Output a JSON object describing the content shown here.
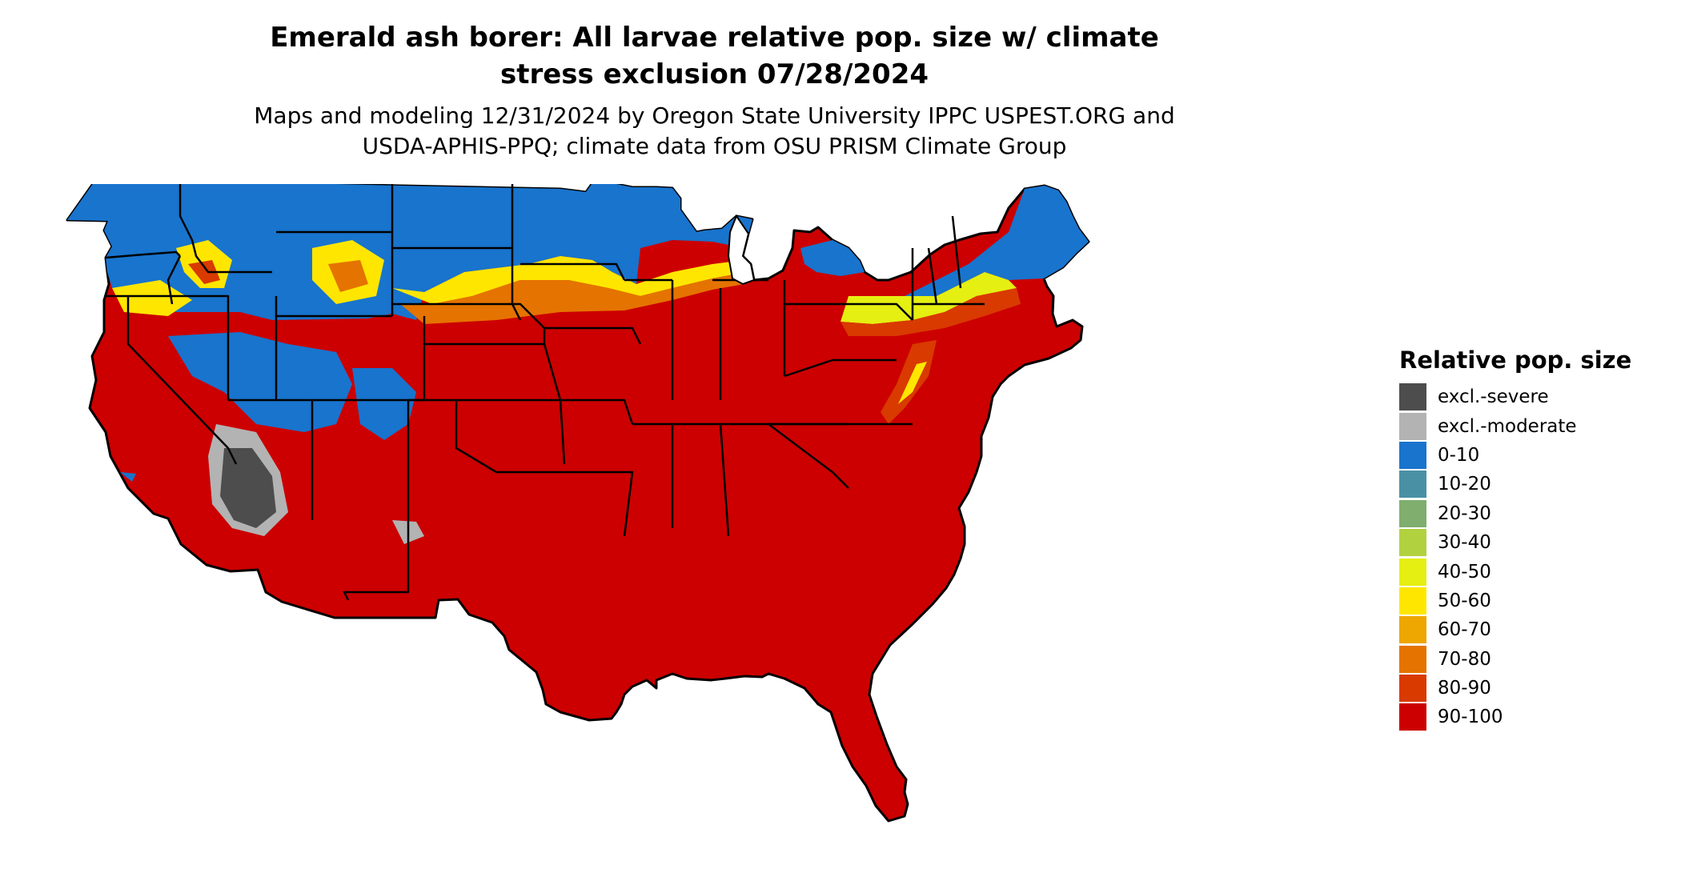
{
  "title_lines": [
    "Emerald ash borer: All larvae relative pop. size w/ climate",
    "stress exclusion 07/28/2024"
  ],
  "subtitle_lines": [
    "Maps and modeling 12/31/2024 by Oregon State University IPPC USPEST.ORG and",
    "USDA-APHIS-PPQ; climate data from OSU PRISM Climate Group"
  ],
  "legend": {
    "title": "Relative pop. size",
    "items": [
      {
        "label": "excl.-severe",
        "color": "#4d4d4d"
      },
      {
        "label": "excl.-moderate",
        "color": "#b3b3b3"
      },
      {
        "label": "0-10",
        "color": "#1874cd"
      },
      {
        "label": "10-20",
        "color": "#4a90a4"
      },
      {
        "label": "20-30",
        "color": "#7fae6e"
      },
      {
        "label": "30-40",
        "color": "#b2d13f"
      },
      {
        "label": "40-50",
        "color": "#e5ef12"
      },
      {
        "label": "50-60",
        "color": "#ffe600"
      },
      {
        "label": "60-70",
        "color": "#eea600"
      },
      {
        "label": "70-80",
        "color": "#e57300"
      },
      {
        "label": "80-90",
        "color": "#d93a00"
      },
      {
        "label": "90-100",
        "color": "#cc0000"
      }
    ]
  }
}
